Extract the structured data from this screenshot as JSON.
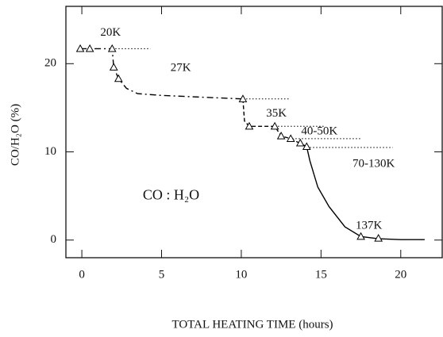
{
  "chart_data": {
    "type": "scatter",
    "xlabel": "TOTAL HEATING TIME (hours)",
    "ylabel": "CO/H₂O (%)",
    "xlim": [
      -1,
      22.6
    ],
    "ylim": [
      -2,
      26.5
    ],
    "xticks": [
      0,
      5,
      10,
      15,
      20
    ],
    "yticks": [
      0,
      10,
      20
    ],
    "color": "#000000",
    "x": [
      -0.1,
      0.5,
      1.9,
      2.0,
      2.3,
      10.1,
      10.5,
      12.1,
      12.5,
      13.1,
      13.7,
      14.1,
      17.5,
      18.6
    ],
    "values": [
      21.7,
      21.7,
      21.7,
      19.6,
      18.3,
      16.0,
      12.9,
      12.9,
      11.8,
      11.5,
      11.0,
      10.6,
      0.4,
      0.2
    ],
    "fits": [
      {
        "dash": "8 4 2 4",
        "x": [
          -0.1,
          1.9,
          2.0,
          2.3,
          2.8,
          3.5,
          5,
          10.1
        ],
        "values": [
          21.7,
          21.7,
          19.6,
          18.3,
          17.2,
          16.6,
          16.4,
          16.0
        ]
      },
      {
        "dash": "5 3",
        "x": [
          10.1,
          10.2,
          10.5,
          12.1,
          12.5,
          13.1,
          14.1
        ],
        "values": [
          16.0,
          13.5,
          12.9,
          12.9,
          11.8,
          11.5,
          10.6
        ]
      },
      {
        "dash": "none",
        "x": [
          14.1,
          14.3,
          14.8,
          15.5,
          16.5,
          17.5,
          18.6,
          20,
          21.5
        ],
        "values": [
          10.6,
          9.0,
          6.0,
          3.8,
          1.5,
          0.4,
          0.15,
          0.05,
          0.05
        ]
      }
    ],
    "plateaus": [
      {
        "x": [
          1.9,
          4.3
        ],
        "y": 21.7
      },
      {
        "x": [
          10.1,
          13.0
        ],
        "y": 16.0
      },
      {
        "x": [
          12.1,
          15.2
        ],
        "y": 12.9
      },
      {
        "x": [
          13.0,
          17.5
        ],
        "y": 11.5
      },
      {
        "x": [
          14.1,
          19.5
        ],
        "y": 10.5
      }
    ],
    "annotations": [
      {
        "text": "20K",
        "x": 1.8,
        "y": 23.5
      },
      {
        "text": "27K",
        "x": 6.2,
        "y": 19.5
      },
      {
        "text": "35K",
        "x": 12.2,
        "y": 14.3
      },
      {
        "text": "40-50K",
        "x": 14.9,
        "y": 12.3
      },
      {
        "text": "70-130K",
        "x": 18.3,
        "y": 8.6
      },
      {
        "text": "137K",
        "x": 18.0,
        "y": 1.6
      },
      {
        "text": "CO : H₂O",
        "x": 5.6,
        "y": 5.0
      }
    ]
  }
}
